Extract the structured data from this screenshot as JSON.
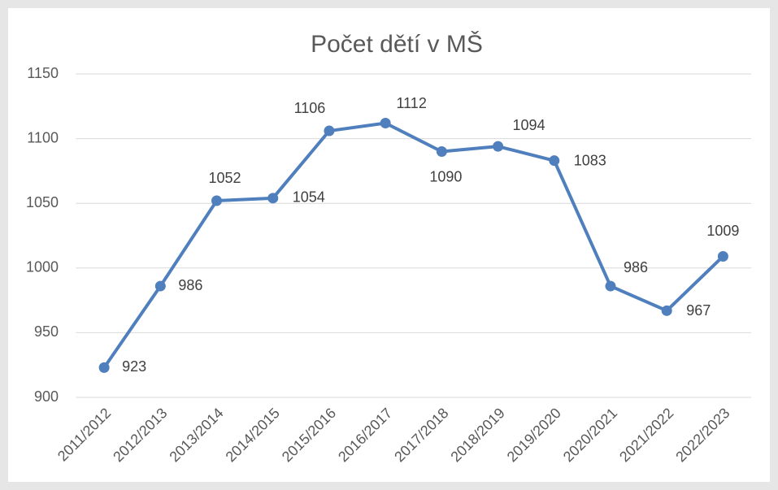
{
  "chart_data": {
    "type": "line",
    "title": "Počet dětí v MŠ",
    "categories": [
      "2011/2012",
      "2012/2013",
      "2013/2014",
      "2014/2015",
      "2015/2016",
      "2016/2017",
      "2017/2018",
      "2018/2019",
      "2019/2020",
      "2020/2021",
      "2021/2022",
      "2022/2023"
    ],
    "series": [
      {
        "name": "Počet dětí",
        "color": "#4f7fbd",
        "values": [
          923,
          986,
          1052,
          1054,
          1106,
          1112,
          1090,
          1094,
          1083,
          986,
          967,
          1009
        ]
      }
    ],
    "ylim": [
      900,
      1150
    ],
    "yticks": [
      900,
      950,
      1000,
      1050,
      1100,
      1150
    ],
    "grid": true
  }
}
